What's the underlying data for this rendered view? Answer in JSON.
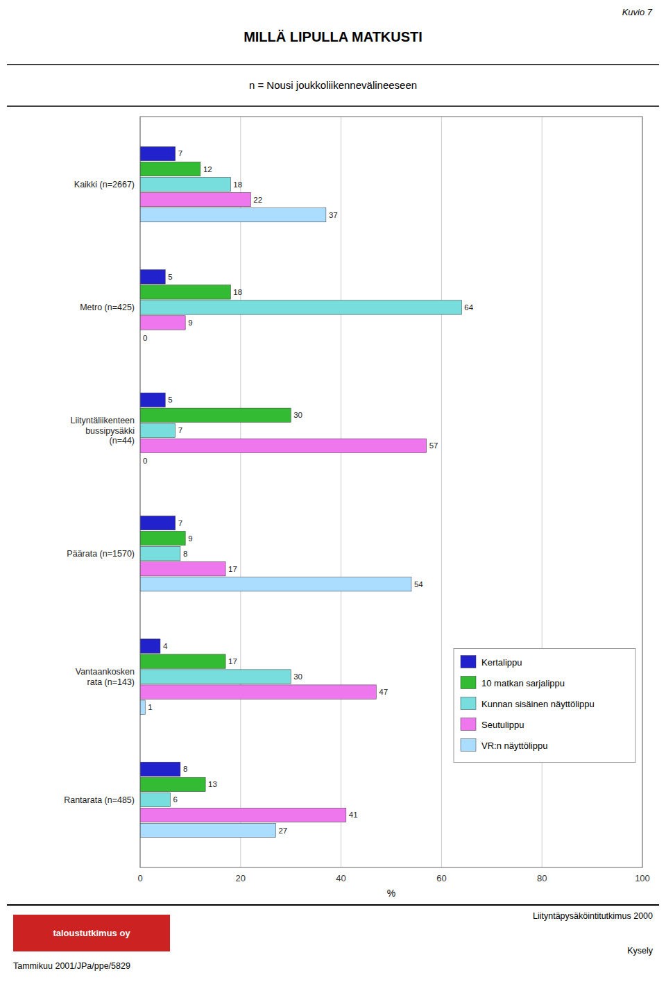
{
  "chart_data": {
    "type": "bar",
    "orientation": "horizontal",
    "title": "MILLÄ LIPULLA MATKUSTI",
    "subtitle": "n = Nousi joukkoliikennevälineeseen",
    "xlabel": "%",
    "categories": [
      "Kaikki (n=2667)",
      "Metro (n=425)",
      "Liityntäliikenteen\nbussipysäkki\n(n=44)",
      "Päärata (n=1570)",
      "Vantaankosken\nrata (n=143)",
      "Rantarata (n=485)"
    ],
    "series": [
      {
        "name": "Kertalippu",
        "color": "#2222cc",
        "values": [
          7,
          5,
          5,
          7,
          4,
          8
        ]
      },
      {
        "name": "10 matkan sarjalippu",
        "color": "#33bb33",
        "values": [
          12,
          18,
          30,
          9,
          17,
          13
        ]
      },
      {
        "name": "Kunnan sisäinen näyttölippu",
        "color": "#77dddd",
        "values": [
          18,
          64,
          7,
          8,
          30,
          6
        ]
      },
      {
        "name": "Seutulippu",
        "color": "#ee77ee",
        "values": [
          22,
          9,
          57,
          17,
          47,
          41
        ]
      },
      {
        "name": "VR:n näyttölippu",
        "color": "#aaddff",
        "values": [
          37,
          0,
          0,
          54,
          1,
          27
        ]
      }
    ],
    "xlim": [
      0,
      100
    ],
    "xticks": [
      0,
      20,
      40,
      60,
      80,
      100
    ],
    "grid": true,
    "legend": "lower right",
    "data_labels": true,
    "annotations": [
      "Kuvio 7",
      "Tammikuu 2001/JPa/ppe/5829",
      "Liityntäpysäköintitutkimus 2000",
      "Kysely",
      "taloustutkimus oy"
    ]
  }
}
